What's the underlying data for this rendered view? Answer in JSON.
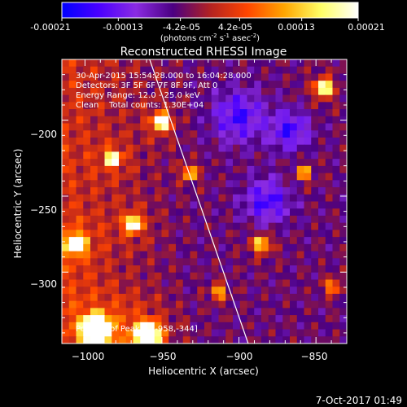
{
  "colorbar": {
    "ticks": [
      "-0.00021",
      "-0.00013",
      "-4.2e-05",
      "4.2e-05",
      "0.00013",
      "0.00021"
    ],
    "tick_values": [
      -0.00021,
      -0.00013,
      -4.2e-05,
      4.2e-05,
      0.00013,
      0.00021
    ],
    "range": [
      -0.00021,
      0.00021
    ],
    "units_prefix": "(photons cm",
    "units_exp1": "-2",
    "units_mid": " s",
    "units_exp2": "-1",
    "units_mid2": " asec",
    "units_exp3": "-2",
    "units_suffix": ")"
  },
  "chart_data": {
    "type": "heatmap",
    "title": "Reconstructed RHESSI Image",
    "xlabel": "Heliocentric X (arcsec)",
    "ylabel": "Heliocentric Y (arcsec)",
    "xlim": [
      -1015,
      -830
    ],
    "ylim": [
      -347,
      -160
    ],
    "x_ticks": [
      -1000,
      -950,
      -900,
      -850
    ],
    "x_tick_labels": [
      "−1000",
      "−950",
      "−900",
      "−850"
    ],
    "y_ticks": [
      -200,
      -250,
      -300
    ],
    "y_tick_labels": [
      "−200",
      "−250",
      "−300"
    ],
    "annotations": [
      "30-Apr-2015 15:54:28.000 to 16:04:28.000",
      "Detectors: 3F 5F 6F 7F 8F 9F, Att 0",
      "Energy Range: 12.0 - 25.0 keV",
      "Clean    Total counts: 1.30E+04"
    ],
    "peak_label": "Position of Peak = [-958,-344]",
    "peak_position": [
      -958,
      -344
    ],
    "limb_line": [
      [
        -958,
        -160
      ],
      [
        -894,
        -347
      ]
    ],
    "colormap": [
      "#0000ff",
      "#4a00ff",
      "#8a2be2",
      "#4b0082",
      "#b22222",
      "#ff4500",
      "#ffa500",
      "#ffff66",
      "#ffffff"
    ]
  },
  "footer": {
    "timestamp": "7-Oct-2017 01:49"
  }
}
